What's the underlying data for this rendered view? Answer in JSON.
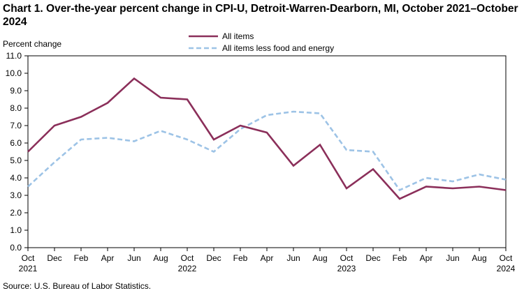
{
  "chart_data": {
    "type": "line",
    "title": "Chart 1. Over-the-year percent change in CPI-U, Detroit-Warren-Dearborn, MI, October 2021–October 2024",
    "ylabel": "Percent change",
    "xlabel": "",
    "ylim": [
      0,
      11
    ],
    "yticks": [
      "0.0",
      "1.0",
      "2.0",
      "3.0",
      "4.0",
      "5.0",
      "6.0",
      "7.0",
      "8.0",
      "9.0",
      "10.0",
      "11.0"
    ],
    "categories": [
      "Oct 2021",
      "Dec 2021",
      "Feb 2022",
      "Apr 2022",
      "Jun 2022",
      "Aug 2022",
      "Oct 2022",
      "Dec 2022",
      "Feb 2023",
      "Apr 2023",
      "Jun 2023",
      "Aug 2023",
      "Oct 2023",
      "Dec 2023",
      "Feb 2024",
      "Apr 2024",
      "Jun 2024",
      "Aug 2024",
      "Oct 2024"
    ],
    "xtick_labels": [
      {
        "month": "Oct",
        "year": "2021"
      },
      {
        "month": "Dec",
        "year": ""
      },
      {
        "month": "Feb",
        "year": ""
      },
      {
        "month": "Apr",
        "year": ""
      },
      {
        "month": "Jun",
        "year": ""
      },
      {
        "month": "Aug",
        "year": ""
      },
      {
        "month": "Oct",
        "year": "2022"
      },
      {
        "month": "Dec",
        "year": ""
      },
      {
        "month": "Feb",
        "year": ""
      },
      {
        "month": "Apr",
        "year": ""
      },
      {
        "month": "Jun",
        "year": ""
      },
      {
        "month": "Aug",
        "year": ""
      },
      {
        "month": "Oct",
        "year": "2023"
      },
      {
        "month": "Dec",
        "year": ""
      },
      {
        "month": "Feb",
        "year": ""
      },
      {
        "month": "Apr",
        "year": ""
      },
      {
        "month": "Jun",
        "year": ""
      },
      {
        "month": "Aug",
        "year": ""
      },
      {
        "month": "Oct",
        "year": "2024"
      }
    ],
    "series": [
      {
        "name": "All items",
        "color": "#8B2F5A",
        "style": "solid",
        "values": [
          5.5,
          7.0,
          7.5,
          8.3,
          9.7,
          8.6,
          8.5,
          6.2,
          7.0,
          6.6,
          4.7,
          5.9,
          3.4,
          4.5,
          2.8,
          3.5,
          3.4,
          3.5,
          3.3
        ]
      },
      {
        "name": "All items less food and energy",
        "color": "#9DC3E6",
        "style": "dashed",
        "values": [
          3.5,
          4.9,
          6.2,
          6.3,
          6.1,
          6.7,
          6.2,
          5.5,
          6.8,
          7.6,
          7.8,
          7.7,
          5.6,
          5.5,
          3.3,
          4.0,
          3.8,
          4.2,
          3.9
        ]
      }
    ],
    "legend_position": "top-center",
    "grid": false
  },
  "source": "Source: U.S. Bureau of Labor Statistics."
}
